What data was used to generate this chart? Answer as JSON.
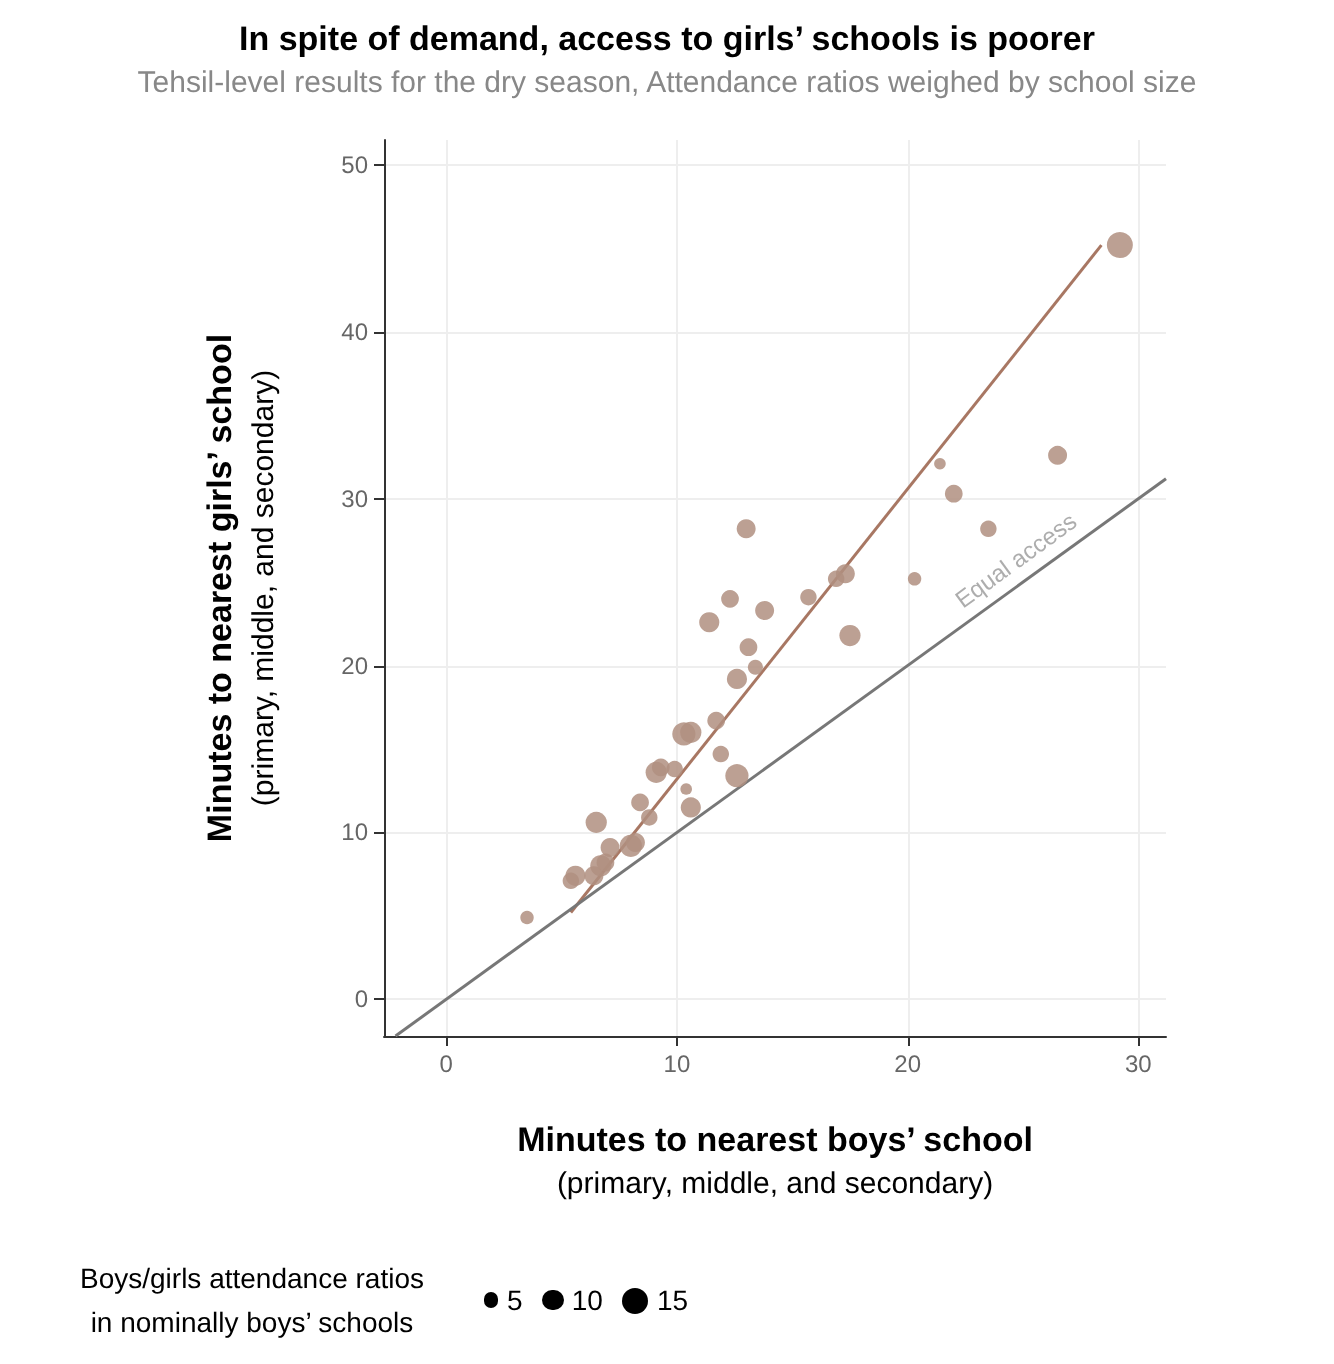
{
  "chart_data": {
    "type": "bubble",
    "title": "In spite of demand, access to girls’ schools is poorer",
    "subtitle": "Tehsil-level results for the dry season, Attendance ratios weighed by school size",
    "xlabel": "Minutes to nearest boys’ school\n(primary, middle, and secondary)",
    "ylabel": "Minutes to nearest girls’ school\n(primary, middle, and secondary)",
    "legend_title": "Boys/girls attendance ratios\nin nominally boys’ schools",
    "size_legend": [
      5,
      10,
      15
    ],
    "xlim": [
      -2.7,
      31.2
    ],
    "ylim": [
      -2.2,
      51.5
    ],
    "xticks": [
      0,
      10,
      20,
      30
    ],
    "yticks": [
      0,
      10,
      20,
      30,
      40,
      50
    ],
    "grid": true,
    "annotations": [
      {
        "text": "Equal access",
        "x": 25,
        "y": 25
      }
    ],
    "series": [
      {
        "color": "#b08f80",
        "x": [
          29.2,
          26.5,
          21.4,
          22.0,
          23.5,
          20.3,
          17.3,
          16.9,
          17.5,
          15.7,
          13.0,
          12.3,
          13.8,
          11.4,
          13.1,
          12.6,
          13.4,
          10.3,
          10.6,
          11.7,
          11.9,
          12.6,
          10.6,
          10.4,
          9.1,
          9.3,
          9.9,
          8.4,
          8.8,
          6.5,
          8.0,
          8.2,
          7.1,
          6.7,
          5.6,
          5.4,
          6.4,
          6.9,
          3.5
        ],
        "values": [
          45.2,
          32.6,
          32.1,
          30.3,
          28.2,
          25.2,
          25.5,
          25.2,
          21.8,
          24.1,
          28.2,
          24.0,
          23.3,
          22.6,
          21.1,
          19.2,
          19.9,
          15.9,
          16.0,
          16.7,
          14.7,
          13.4,
          11.5,
          12.6,
          13.6,
          13.9,
          13.8,
          11.8,
          10.9,
          10.6,
          9.2,
          9.4,
          9.1,
          8.0,
          7.4,
          7.1,
          7.4,
          8.2,
          4.9
        ],
        "sizes": [
          15,
          8,
          3,
          7,
          6,
          4,
          8,
          6,
          10,
          6,
          8,
          7,
          8,
          9,
          7,
          9,
          5,
          12,
          10,
          7,
          6,
          12,
          9,
          3,
          10,
          7,
          6,
          7,
          6,
          10,
          11,
          8,
          8,
          10,
          9,
          6,
          8,
          7,
          4
        ]
      },
      {
        "type": "line",
        "color": "#a87763",
        "x": [
          5.4,
          28.4
        ],
        "values": [
          5.2,
          45.2
        ]
      },
      {
        "type": "line",
        "color": "#777777",
        "x": [
          -2.2,
          31.2
        ],
        "values": [
          -2.2,
          31.2
        ]
      }
    ]
  }
}
